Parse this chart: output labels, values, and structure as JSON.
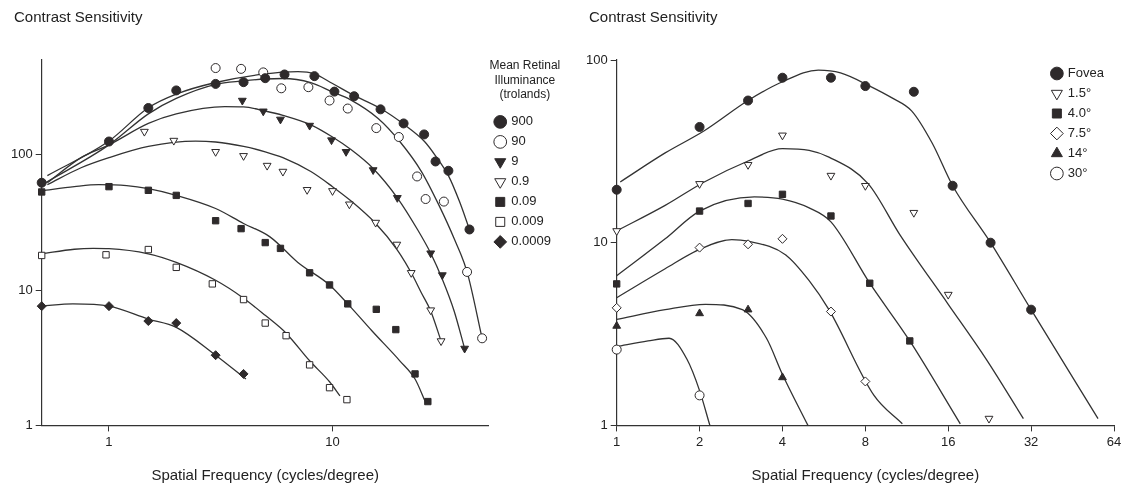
{
  "chart_data": [
    {
      "type": "scatter",
      "ylabel": "Contrast Sensitivity",
      "xlabel": "Spatial Frequency (cycles/degree)",
      "legend_title": "Mean Retinal Illuminance (trolands)",
      "legend": "right",
      "log": "xy",
      "grid": false,
      "xlim": [
        0.5,
        50
      ],
      "xticks": [
        1,
        10
      ],
      "ylim": [
        1,
        500
      ],
      "yticks": [
        1,
        10,
        100
      ],
      "series": [
        {
          "name": "900",
          "color": "#2e2a2b",
          "marker": "circle",
          "x": [
            0.5,
            1,
            1.5,
            2,
            3,
            4,
            5,
            6.1,
            8.3,
            10.2,
            12.5,
            16.4,
            20.8,
            25.7,
            28.9,
            33,
            41
          ],
          "values": [
            62,
            125,
            221,
            298,
            333,
            343,
            367,
            391,
            380,
            292,
            270,
            216,
            170,
            141,
            89,
            76,
            28
          ]
        },
        {
          "name": "90",
          "color": "#ffffff",
          "marker": "circle",
          "x": [
            3,
            3.9,
            4.9,
            5.9,
            7.8,
            9.7,
            11.7,
            15.7,
            19.8,
            23.9,
            26.1,
            31.5,
            40,
            46.7
          ],
          "values": [
            436,
            430,
            405,
            309,
            315,
            251,
            219,
            157,
            135,
            69,
            47,
            45,
            13.6,
            4.4
          ]
        },
        {
          "name": "9",
          "color": "#2e2a2b",
          "marker": "triangle-down",
          "x": [
            3.95,
            4.9,
            5.85,
            7.9,
            9.9,
            11.5,
            15.2,
            19.5,
            27.5,
            31,
            39
          ],
          "values": [
            251,
            209,
            182,
            164,
            128,
            105,
            77,
            48,
            18.7,
            12.9,
            3.7
          ]
        },
        {
          "name": "0.9",
          "color": "#ffffff",
          "marker": "triangle-down",
          "x": [
            1.44,
            1.95,
            3,
            4,
            5.1,
            6,
            7.7,
            10,
            11.9,
            15.6,
            19.4,
            22.5,
            27.5,
            30.6
          ],
          "values": [
            148,
            127,
            105,
            98,
            83,
            75,
            55,
            54,
            43,
            31.5,
            21.7,
            13.4,
            7.1,
            4.2
          ]
        },
        {
          "name": "0.09",
          "color": "#2e2a2b",
          "marker": "square",
          "x": [
            0.5,
            1,
            1.5,
            2,
            3,
            3.9,
            5,
            5.85,
            7.9,
            9.7,
            11.7,
            15.7,
            19.2,
            23.4,
            26.7
          ],
          "values": [
            53,
            58,
            54.5,
            50,
            32.5,
            28.4,
            22.4,
            20.3,
            13.4,
            10.9,
            7.9,
            7.2,
            5.1,
            2.4,
            1.5
          ]
        },
        {
          "name": "0.009",
          "color": "#ffffff",
          "marker": "square",
          "x": [
            0.5,
            0.97,
            1.5,
            2,
            2.9,
            4,
            5,
            6.2,
            7.9,
            9.7,
            11.6
          ],
          "values": [
            18,
            18.2,
            19.9,
            14.7,
            11.1,
            8.5,
            5.7,
            4.6,
            2.8,
            1.9,
            1.55
          ]
        },
        {
          "name": "0.0009",
          "color": "#2e2a2b",
          "marker": "diamond",
          "x": [
            0.5,
            1,
            1.5,
            2,
            3,
            4
          ],
          "values": [
            7.6,
            7.6,
            5.9,
            5.7,
            3.3,
            2.4
          ]
        },
        {
          "type": "line",
          "color": "#333333",
          "x": [
            0.53,
            1,
            1.5,
            2,
            3,
            4.9,
            7,
            8.3,
            10,
            12.4,
            16.4,
            20.8,
            25.8,
            28.9,
            33,
            37,
            41
          ],
          "values": [
            70,
            126,
            222,
            280,
            341,
            393,
            410,
            395,
            335,
            275,
            219,
            168,
            125,
            98,
            70,
            45,
            28
          ]
        },
        {
          "type": "line",
          "color": "#333333",
          "x": [
            0.52,
            1,
            1.5,
            2,
            3,
            4,
            5,
            6,
            8,
            10,
            12,
            16,
            20,
            25,
            30,
            35,
            40,
            46.7
          ],
          "values": [
            62,
            118,
            200,
            260,
            330,
            350,
            362,
            365,
            340,
            290,
            255,
            185,
            125,
            75,
            42,
            24,
            13.6,
            4.4
          ]
        },
        {
          "type": "line",
          "color": "#333333",
          "x": [
            0.53,
            0.75,
            1,
            1.5,
            2,
            3.3,
            4,
            5,
            6,
            8,
            10,
            12,
            15.2,
            19.5,
            24,
            27.5,
            31,
            35,
            39
          ],
          "values": [
            62,
            95,
            118,
            170,
            200,
            226,
            225,
            210,
            195,
            166,
            135,
            110,
            79,
            48,
            28,
            18.7,
            12,
            7,
            3.7
          ]
        },
        {
          "type": "line",
          "color": "#333333",
          "x": [
            0.53,
            0.75,
            1,
            1.5,
            2.44,
            3,
            4,
            5,
            6,
            8,
            10,
            12,
            15.6,
            19.4,
            22.5,
            25,
            27.5,
            30.6
          ],
          "values": [
            60,
            80,
            95,
            115,
            126,
            124,
            115,
            105,
            95,
            75,
            58,
            46,
            31,
            20,
            13.4,
            9.5,
            7,
            4.2
          ]
        },
        {
          "type": "line",
          "color": "#333333",
          "x": [
            0.5,
            0.7,
            0.9,
            1.2,
            1.5,
            2,
            3,
            4,
            5.25,
            7,
            9.7,
            11.7,
            15,
            20,
            23.4,
            26
          ],
          "values": [
            54,
            58,
            60,
            59,
            56,
            50,
            40,
            31,
            24.7,
            16,
            10.9,
            7.9,
            5,
            3,
            2.2,
            1.5
          ]
        },
        {
          "type": "line",
          "color": "#333333",
          "x": [
            0.5,
            0.7,
            0.85,
            1,
            1.5,
            2,
            3,
            4,
            5,
            6.2,
            7.9,
            9.7,
            10.8
          ],
          "values": [
            18.5,
            20,
            20.3,
            20.2,
            18.5,
            16,
            11.8,
            8.7,
            6.5,
            4.8,
            3,
            2.1,
            1.65
          ]
        },
        {
          "type": "line",
          "color": "#333333",
          "x": [
            0.5,
            0.69,
            1,
            1.5,
            2,
            3,
            4.1
          ],
          "values": [
            7.6,
            7.9,
            7.6,
            6.1,
            5.3,
            3.3,
            2.2
          ]
        }
      ]
    },
    {
      "type": "scatter",
      "ylabel": "Contrast Sensitivity",
      "xlabel": "Spatial Frequency (cycles/degree)",
      "legend": "top right",
      "log": "xy",
      "grid": false,
      "xlim": [
        1,
        64
      ],
      "xticks": [
        1,
        2,
        4,
        8,
        16,
        32,
        64
      ],
      "ylim": [
        1,
        100
      ],
      "yticks": [
        1,
        10,
        100
      ],
      "series": [
        {
          "name": "Fovea",
          "color": "#2e2a2b",
          "marker": "circle",
          "x": [
            1,
            2,
            3,
            4,
            6,
            8,
            12,
            16.6,
            22.8,
            32
          ],
          "values": [
            19.5,
            43,
            60,
            80,
            80,
            72,
            67,
            20.5,
            10,
            4.3
          ]
        },
        {
          "name": "1.5°",
          "color": "#ffffff",
          "marker": "triangle-down",
          "x": [
            1,
            2,
            3,
            4,
            6,
            8,
            12,
            16,
            22.5
          ],
          "values": [
            11.6,
            21,
            26.7,
            38.7,
            23.3,
            20.5,
            14.6,
            5.2,
            1.09
          ]
        },
        {
          "name": "4.0°",
          "color": "#2e2a2b",
          "marker": "square",
          "x": [
            1,
            2,
            3,
            4,
            6,
            8.3,
            11.6
          ],
          "values": [
            5.95,
            14.9,
            16.4,
            18.4,
            14,
            6,
            2.9
          ]
        },
        {
          "name": "7.5°",
          "color": "#ffffff",
          "marker": "diamond",
          "x": [
            1,
            2,
            3,
            4,
            6,
            8
          ],
          "values": [
            4.4,
            9.4,
            9.8,
            10.5,
            4.2,
            1.74
          ]
        },
        {
          "name": "14°",
          "color": "#2e2a2b",
          "marker": "triangle",
          "x": [
            1,
            2,
            3,
            4
          ],
          "values": [
            3.5,
            4.1,
            4.3,
            1.83
          ]
        },
        {
          "name": "30°",
          "color": "#ffffff",
          "marker": "circle",
          "x": [
            1,
            2
          ],
          "values": [
            2.6,
            1.46
          ]
        },
        {
          "type": "line",
          "color": "#333333",
          "x": [
            1.03,
            1.5,
            2.08,
            3,
            4,
            5.4,
            6.5,
            8.3,
            10,
            11.8,
            14,
            16.6,
            22.8,
            32,
            56
          ],
          "values": [
            21.5,
            31,
            41,
            60,
            76,
            88,
            85,
            72,
            62,
            52.5,
            35,
            20.5,
            10,
            4.3,
            1.09
          ]
        },
        {
          "type": "line",
          "color": "#333333",
          "x": [
            1,
            1.5,
            2.08,
            3,
            4,
            5,
            5.9,
            8.2,
            10.7,
            16,
            22,
            30
          ],
          "values": [
            11.6,
            16,
            21.5,
            28,
            32.7,
            32,
            29.4,
            21,
            11,
            4.6,
            2.3,
            1.09
          ]
        },
        {
          "type": "line",
          "color": "#333333",
          "x": [
            1,
            1.5,
            2,
            3.16,
            4,
            5,
            6,
            8.3,
            11.6,
            17.7
          ],
          "values": [
            6.6,
            10.5,
            14.9,
            17.8,
            17.3,
            15.5,
            13,
            6,
            2.9,
            1.02
          ]
        },
        {
          "type": "line",
          "color": "#333333",
          "x": [
            1,
            1.5,
            2,
            2.62,
            3,
            4.1,
            5,
            5.9,
            8.6,
            10.9
          ],
          "values": [
            5,
            7.2,
            9.2,
            10.4,
            10.2,
            8.6,
            6.2,
            4.3,
            1.46,
            1.02
          ]
        },
        {
          "type": "line",
          "color": "#333333",
          "x": [
            1,
            1.5,
            2.1,
            2.86,
            3.5,
            4,
            4.95
          ],
          "values": [
            3.8,
            4.3,
            4.6,
            4.3,
            3,
            1.9,
            1
          ]
        },
        {
          "type": "line",
          "color": "#333333",
          "x": [
            1,
            1.3,
            1.55,
            1.8,
            2,
            2.18
          ],
          "values": [
            2.7,
            2.9,
            3,
            2.3,
            1.55,
            1
          ]
        }
      ]
    }
  ]
}
